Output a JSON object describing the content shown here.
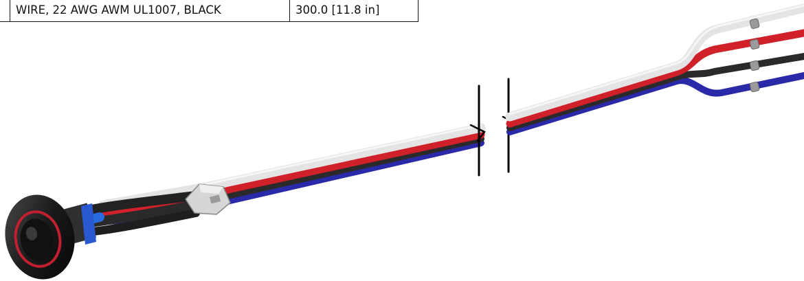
{
  "bom_row": {
    "item": "",
    "description": "WIRE, 22 AWG AWM UL1007, BLACK",
    "length": "300.0 [11.8 in]"
  },
  "colors": {
    "wire_white": "#e4e4e4",
    "wire_red": "#d0202a",
    "wire_black": "#2a2a2a",
    "wire_blue": "#2a2aa8",
    "connector_body": "#1c1c1c",
    "connector_ring": "#c02030",
    "clip": "#cfcfcf",
    "break_line": "#000000"
  }
}
